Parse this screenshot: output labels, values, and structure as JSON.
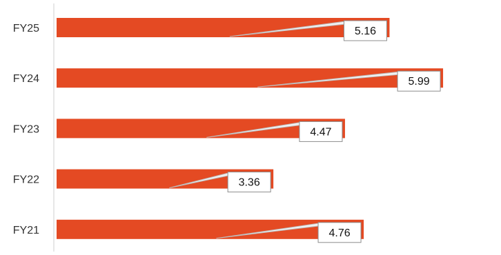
{
  "chart_data": {
    "type": "bar",
    "orientation": "horizontal",
    "categories": [
      "FY25",
      "FY24",
      "FY23",
      "FY22",
      "FY21"
    ],
    "values": [
      5.16,
      5.99,
      4.47,
      3.36,
      4.76
    ],
    "data_labels": [
      "5.16",
      "5.99",
      "4.47",
      "3.36",
      "4.76"
    ],
    "title": "",
    "xlabel": "",
    "ylabel": "",
    "xlim": [
      0,
      6.1
    ],
    "grid": false,
    "legend": "none",
    "colors": {
      "bar": "#E44A23",
      "axis": "#CFCFCF",
      "label_border": "#8C8C8C",
      "leader_line": "#BDBDBD",
      "text": "#333333"
    }
  }
}
